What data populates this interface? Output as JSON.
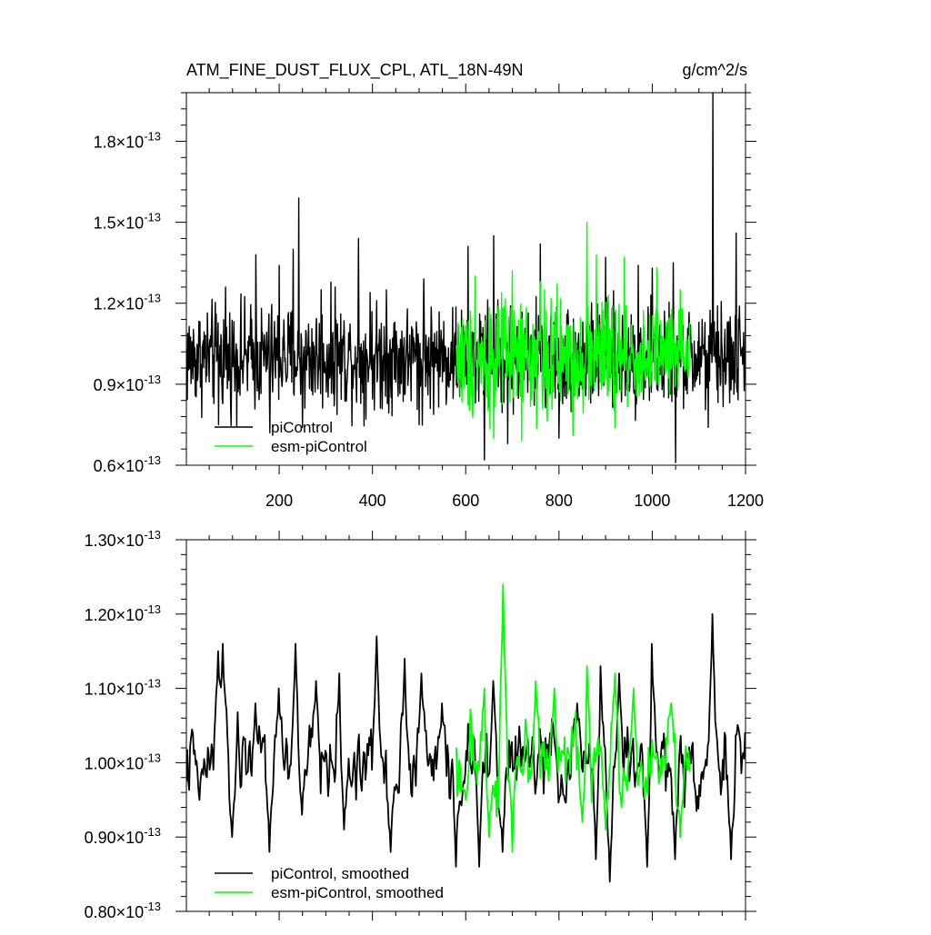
{
  "title": "ATM_FINE_DUST_FLUX_CPL, ATL_18N-49N",
  "units": "g/cm^2/s",
  "colors": {
    "piControl": "#000000",
    "esm_piControl": "#00ff00"
  },
  "chart_data": [
    {
      "type": "line",
      "panel": "top",
      "x_range": [
        1,
        1200
      ],
      "ylim": [
        6e-14,
        1.98e-13
      ],
      "x_ticks": [
        200,
        400,
        600,
        800,
        1000,
        1200
      ],
      "x_tick_labels": [
        "200",
        "400",
        "600",
        "800",
        "1000",
        "1200"
      ],
      "y_ticks": [
        6e-14,
        9e-14,
        1.2e-13,
        1.5e-13,
        1.8e-13
      ],
      "y_tick_labels": [
        {
          "mantissa": "0.6",
          "exponent": "-13"
        },
        {
          "mantissa": "0.9",
          "exponent": "-13"
        },
        {
          "mantissa": "1.2",
          "exponent": "-13"
        },
        {
          "mantissa": "1.5",
          "exponent": "-13"
        },
        {
          "mantissa": "1.8",
          "exponent": "-13"
        }
      ],
      "legend_position": "bottom-left",
      "series": [
        {
          "name": "piControl",
          "color": "#000000",
          "x_start": 1,
          "x_end": 1200,
          "mean": 1e-13,
          "amplitude": 1.3e-14,
          "peaks": [
            [
              85,
              1.26e-13
            ],
            [
              150,
              1.38e-13
            ],
            [
              200,
              1.34e-13
            ],
            [
              230,
              1.4e-13
            ],
            [
              242,
              1.59e-13
            ],
            [
              290,
              1.25e-13
            ],
            [
              320,
              1.26e-13
            ],
            [
              370,
              1.44e-13
            ],
            [
              395,
              1.24e-13
            ],
            [
              430,
              1.25e-13
            ],
            [
              510,
              1.29e-13
            ],
            [
              605,
              1.41e-13
            ],
            [
              660,
              1.45e-13
            ],
            [
              760,
              1.42e-13
            ],
            [
              900,
              1.37e-13
            ],
            [
              970,
              1.34e-13
            ],
            [
              1000,
              1.33e-13
            ],
            [
              1045,
              1.35e-13
            ],
            [
              1130,
              1.98e-13
            ],
            [
              1180,
              1.46e-13
            ],
            [
              1205,
              1.2e-13
            ]
          ],
          "troughs": [
            [
              70,
              7.5e-14
            ],
            [
              180,
              7.2e-14
            ],
            [
              250,
              7.4e-14
            ],
            [
              500,
              7.5e-14
            ],
            [
              640,
              6.2e-14
            ],
            [
              690,
              6.8e-14
            ],
            [
              800,
              7e-14
            ],
            [
              1050,
              6.1e-14
            ],
            [
              1120,
              7.4e-14
            ]
          ]
        },
        {
          "name": "esm-piControl",
          "color": "#00ff00",
          "x_start": 580,
          "x_end": 1080,
          "mean": 1e-13,
          "amplitude": 1.4e-14,
          "peaks": [
            [
              620,
              1.3e-13
            ],
            [
              700,
              1.32e-13
            ],
            [
              760,
              1.28e-13
            ],
            [
              860,
              1.5e-13
            ],
            [
              880,
              1.38e-13
            ],
            [
              940,
              1.37e-13
            ],
            [
              1010,
              1.33e-13
            ],
            [
              1060,
              1.25e-13
            ]
          ],
          "troughs": [
            [
              660,
              7e-14
            ],
            [
              720,
              6.9e-14
            ],
            [
              830,
              7.1e-14
            ],
            [
              920,
              7.4e-14
            ]
          ]
        }
      ]
    },
    {
      "type": "line",
      "panel": "bottom",
      "x_range": [
        1,
        1200
      ],
      "ylim": [
        8e-14,
        1.3e-13
      ],
      "x_ticks": [
        200,
        400,
        600,
        800,
        1000,
        1200
      ],
      "y_ticks": [
        8e-14,
        9e-14,
        1e-13,
        1.1e-13,
        1.2e-13,
        1.3e-13
      ],
      "y_tick_labels": [
        {
          "mantissa": "0.80",
          "exponent": "-13"
        },
        {
          "mantissa": "0.90",
          "exponent": "-13"
        },
        {
          "mantissa": "1.00",
          "exponent": "-13"
        },
        {
          "mantissa": "1.10",
          "exponent": "-13"
        },
        {
          "mantissa": "1.20",
          "exponent": "-13"
        },
        {
          "mantissa": "1.30",
          "exponent": "-13"
        }
      ],
      "legend_position": "bottom-left",
      "series": [
        {
          "name": "piControl, smoothed",
          "color": "#000000",
          "x_start": 1,
          "x_end": 1200,
          "mean": 1e-13,
          "amplitude": 5e-15,
          "peaks": [
            [
              70,
              1.15e-13
            ],
            [
              80,
              1.16e-13
            ],
            [
              150,
              1.08e-13
            ],
            [
              200,
              1.1e-13
            ],
            [
              235,
              1.16e-13
            ],
            [
              280,
              1.11e-13
            ],
            [
              330,
              1.12e-13
            ],
            [
              410,
              1.17e-13
            ],
            [
              470,
              1.14e-13
            ],
            [
              505,
              1.12e-13
            ],
            [
              550,
              1.08e-13
            ],
            [
              660,
              1.11e-13
            ],
            [
              840,
              1.08e-13
            ],
            [
              890,
              1.13e-13
            ],
            [
              930,
              1.12e-13
            ],
            [
              1000,
              1.16e-13
            ],
            [
              1130,
              1.2e-13
            ]
          ],
          "troughs": [
            [
              30,
              9.5e-14
            ],
            [
              100,
              9e-14
            ],
            [
              180,
              8.8e-14
            ],
            [
              250,
              9.3e-14
            ],
            [
              340,
              9.1e-14
            ],
            [
              440,
              8.8e-14
            ],
            [
              580,
              8.6e-14
            ],
            [
              630,
              8.6e-14
            ],
            [
              680,
              8.8e-14
            ],
            [
              880,
              8.7e-14
            ],
            [
              910,
              8.4e-14
            ],
            [
              990,
              8.6e-14
            ],
            [
              1050,
              8.7e-14
            ],
            [
              1170,
              8.7e-14
            ]
          ]
        },
        {
          "name": "esm-piControl, smoothed",
          "color": "#00ff00",
          "x_start": 580,
          "x_end": 1080,
          "mean": 1e-13,
          "amplitude": 5e-15,
          "peaks": [
            [
              640,
              1.1e-13
            ],
            [
              680,
              1.24e-13
            ],
            [
              700,
              1.14e-13
            ],
            [
              750,
              1.11e-13
            ],
            [
              790,
              1.1e-13
            ],
            [
              860,
              1.13e-13
            ],
            [
              920,
              1.12e-13
            ],
            [
              960,
              1.1e-13
            ],
            [
              1040,
              1.08e-13
            ]
          ],
          "troughs": [
            [
              600,
              9.5e-14
            ],
            [
              650,
              9e-14
            ],
            [
              700,
              8.8e-14
            ],
            [
              850,
              9.2e-14
            ],
            [
              900,
              9.1e-14
            ],
            [
              1060,
              9e-14
            ]
          ]
        }
      ]
    }
  ]
}
